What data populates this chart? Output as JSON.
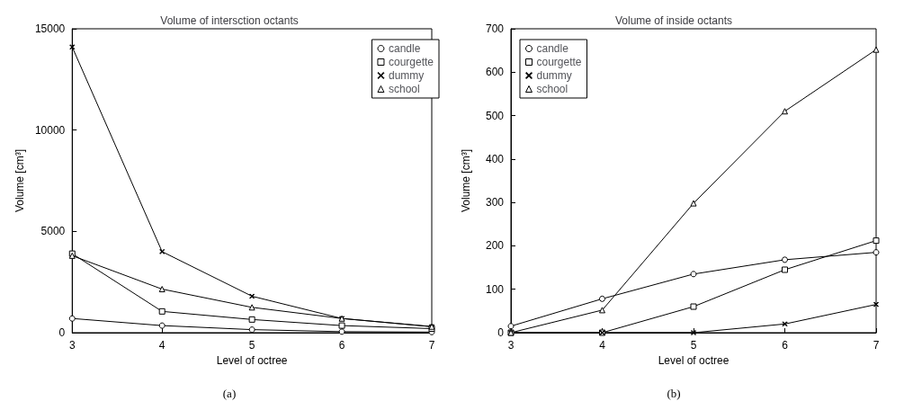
{
  "chart_data": [
    {
      "type": "line",
      "title": "Volume of intersction octants",
      "xlabel": "Level of octree",
      "ylabel": "Volume [cm³]",
      "annotations": [
        "(a)"
      ],
      "x": [
        3,
        4,
        5,
        6,
        7
      ],
      "xlim": [
        3,
        7
      ],
      "xticks": [
        3,
        4,
        5,
        6,
        7
      ],
      "ylim": [
        0,
        15000
      ],
      "yticks": [
        0,
        5000,
        10000,
        15000
      ],
      "grid": false,
      "legend": "top right",
      "line_style": "solid",
      "series": [
        {
          "name": "candle",
          "color": "#000000",
          "marker": "circle",
          "values": [
            700,
            350,
            150,
            50,
            30
          ]
        },
        {
          "name": "courgette",
          "color": "#000000",
          "marker": "square",
          "values": [
            3900,
            1050,
            650,
            350,
            200
          ]
        },
        {
          "name": "dummy",
          "color": "#000000",
          "marker": "cross",
          "values": [
            14100,
            4000,
            1800,
            700,
            300
          ]
        },
        {
          "name": "school",
          "color": "#000000",
          "marker": "triangle",
          "values": [
            3800,
            2150,
            1250,
            700,
            300
          ]
        }
      ]
    },
    {
      "type": "line",
      "title": "Volume of inside octants",
      "xlabel": "Level of octree",
      "ylabel": "Volume [cm³]",
      "annotations": [
        "(b)"
      ],
      "x": [
        3,
        4,
        5,
        6,
        7
      ],
      "xlim": [
        3,
        7
      ],
      "xticks": [
        3,
        4,
        5,
        6,
        7
      ],
      "ylim": [
        0,
        700
      ],
      "yticks": [
        0,
        100,
        200,
        300,
        400,
        500,
        600,
        700
      ],
      "grid": false,
      "legend": "top left",
      "line_style": "solid",
      "series": [
        {
          "name": "candle",
          "color": "#000000",
          "marker": "circle",
          "values": [
            15,
            78,
            135,
            168,
            185
          ]
        },
        {
          "name": "courgette",
          "color": "#000000",
          "marker": "square",
          "values": [
            0,
            0,
            60,
            145,
            212
          ]
        },
        {
          "name": "dummy",
          "color": "#000000",
          "marker": "cross",
          "values": [
            0,
            0,
            0,
            20,
            65
          ]
        },
        {
          "name": "school",
          "color": "#000000",
          "marker": "triangle",
          "values": [
            0,
            52,
            298,
            510,
            652
          ]
        }
      ]
    }
  ]
}
